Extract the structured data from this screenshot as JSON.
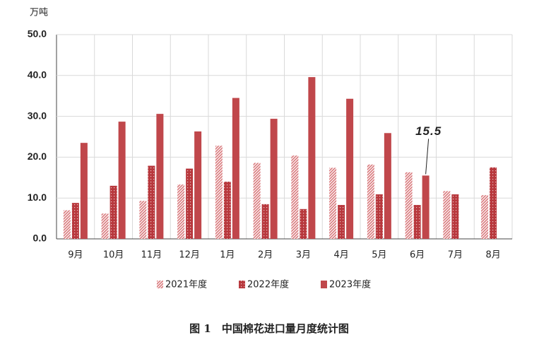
{
  "chart_data": {
    "type": "bar",
    "y_label": "万吨",
    "caption": "图 1　中国棉花进口量月度统计图",
    "categories": [
      "9月",
      "10月",
      "11月",
      "12月",
      "1月",
      "2月",
      "3月",
      "4月",
      "5月",
      "6月",
      "7月",
      "8月"
    ],
    "series": [
      {
        "name": "2021年度",
        "color": "#d9787b",
        "pattern": "hatch",
        "values": [
          7.0,
          6.2,
          9.3,
          13.3,
          22.8,
          18.6,
          20.4,
          17.4,
          18.2,
          16.3,
          11.7,
          10.7
        ]
      },
      {
        "name": "2022年度",
        "color": "#b8383d",
        "pattern": "dots",
        "values": [
          8.8,
          13.0,
          17.9,
          17.2,
          14.0,
          8.5,
          7.3,
          8.3,
          10.9,
          8.3,
          10.9,
          17.5
        ]
      },
      {
        "name": "2023年度",
        "color": "#c0474b",
        "pattern": "solid",
        "values": [
          23.5,
          28.7,
          30.6,
          26.3,
          34.5,
          29.4,
          39.6,
          34.3,
          25.9,
          15.5,
          null,
          null
        ],
        "value_labels": [
          null,
          null,
          null,
          null,
          null,
          null,
          null,
          null,
          null,
          "15.5",
          null,
          null
        ]
      }
    ],
    "ylim": [
      0,
      50
    ],
    "yticks": [
      {
        "value": 0,
        "label": "0.0"
      },
      {
        "value": 10,
        "label": "10.0"
      },
      {
        "value": 20,
        "label": "20.0"
      },
      {
        "value": 30,
        "label": "30.0"
      },
      {
        "value": 40,
        "label": "40.0"
      },
      {
        "value": 50,
        "label": "50.0"
      }
    ],
    "grid": true
  }
}
